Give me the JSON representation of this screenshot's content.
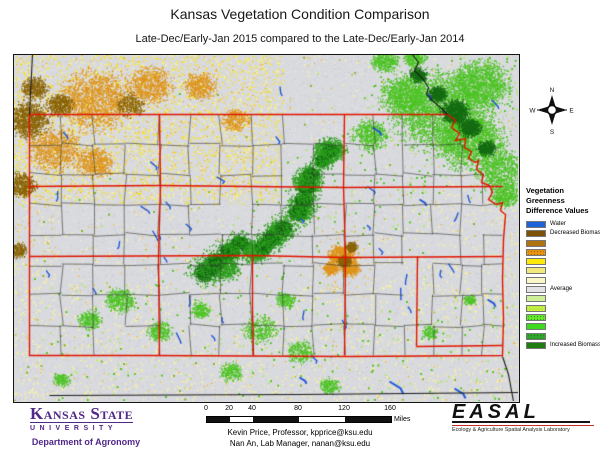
{
  "title": "Kansas Vegetation Condition Comparison",
  "subtitle": "Late-Dec/Early-Jan 2015 compared to the Late-Dec/Early-Jan 2014",
  "compass": {
    "n": "N",
    "e": "E",
    "s": "S",
    "w": "W"
  },
  "legend": {
    "title_lines": [
      "Vegetation",
      "Greenness",
      "Difference Values"
    ],
    "items": [
      {
        "label": "Water",
        "color": "#1e63d8",
        "dots": ""
      },
      {
        "label": "Decreased Biomass",
        "color": "#7b5208",
        "dots": ""
      },
      {
        "label": "",
        "color": "#b0720c",
        "dots": ""
      },
      {
        "label": "",
        "color": "#e5930f",
        "dots": "#a96400"
      },
      {
        "label": "",
        "color": "#ffe90a",
        "dots": ""
      },
      {
        "label": "",
        "color": "#f2e97e",
        "dots": ""
      },
      {
        "label": "",
        "color": "#f9f6c8",
        "dots": ""
      },
      {
        "label": "Average",
        "color": "#e3e3e6",
        "dots": ""
      },
      {
        "label": "",
        "color": "#cdf096",
        "dots": ""
      },
      {
        "label": "",
        "color": "#b8ea46",
        "dots": "#f2fa30"
      },
      {
        "label": "",
        "color": "#66e42c",
        "dots": "#2f9e1a"
      },
      {
        "label": "",
        "color": "#3fda1f",
        "dots": ""
      },
      {
        "label": "",
        "color": "#2fa52b",
        "dots": "#1d7d14"
      },
      {
        "label": "Increased Biomass",
        "color": "#1e7c12",
        "dots": ""
      }
    ]
  },
  "scalebar": {
    "ticks": [
      "0",
      "20",
      "40",
      "80",
      "120",
      "160"
    ],
    "unit": "Miles"
  },
  "credits": [
    "Kevin Price, Professor, kpprice@ksu.edu",
    "Nan An, Lab Manager, nanan@ksu.edu"
  ],
  "ksu": {
    "name": "Kansas State",
    "university": "UNIVERSITY",
    "department": "Department of Agronomy",
    "brand_color": "#512888"
  },
  "easal": {
    "acronym": "EASAL",
    "caption": "Ecology & Agriculture Spatial Analysis Laboratory"
  },
  "map_colors": {
    "background": "#d9dade",
    "texture_light": "#e7e7ed",
    "texture_dark": "#cccdd6",
    "pale_yellow": "#f6efa4",
    "bright_yellow": "#ffe400",
    "orange": "#df941a",
    "dark_olive": "#8a6408",
    "light_green": "#b2e576",
    "mid_green": "#4cc424",
    "deep_green": "#2d9f1e",
    "dark_green": "#156c12",
    "water": "#2257d8",
    "district_red": "#e01400",
    "county_line": "#3c3c38",
    "neighbor_line": "#1a1a1a"
  }
}
